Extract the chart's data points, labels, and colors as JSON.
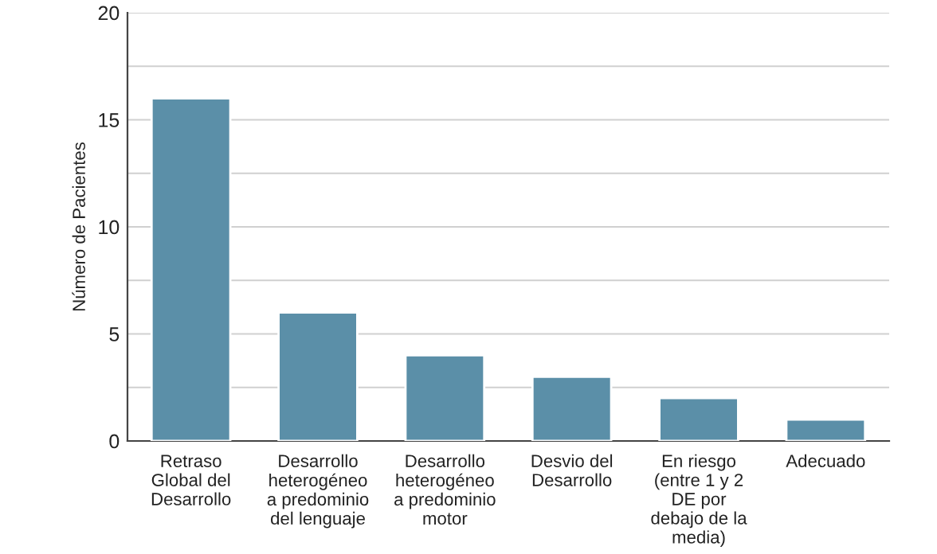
{
  "chart_data": {
    "type": "bar",
    "ylabel": "Número de Pacientes",
    "categories": [
      "Retraso\nGlobal del\nDesarrollo",
      "Desarrollo\nheterogéneo\na predominio\ndel lenguaje",
      "Desarrollo\nheterogéneo\na predominio\nmotor",
      "Desvio del\nDesarrollo",
      "En riesgo\n(entre 1 y 2\nDE por\ndebajo de la\nmedia)",
      "Adecuado"
    ],
    "values": [
      16,
      6,
      4,
      3,
      2,
      1
    ],
    "color": "#5b8fa8",
    "ylim": [
      0,
      20
    ],
    "yticks": [
      0,
      {
        "value": 2.5,
        "label": null
      },
      5,
      {
        "value": 7.5,
        "label": null
      },
      10,
      {
        "value": 12.5,
        "label": null
      },
      15,
      {
        "value": 17.5,
        "label": null
      },
      20
    ],
    "grid": "y",
    "legend": false
  }
}
